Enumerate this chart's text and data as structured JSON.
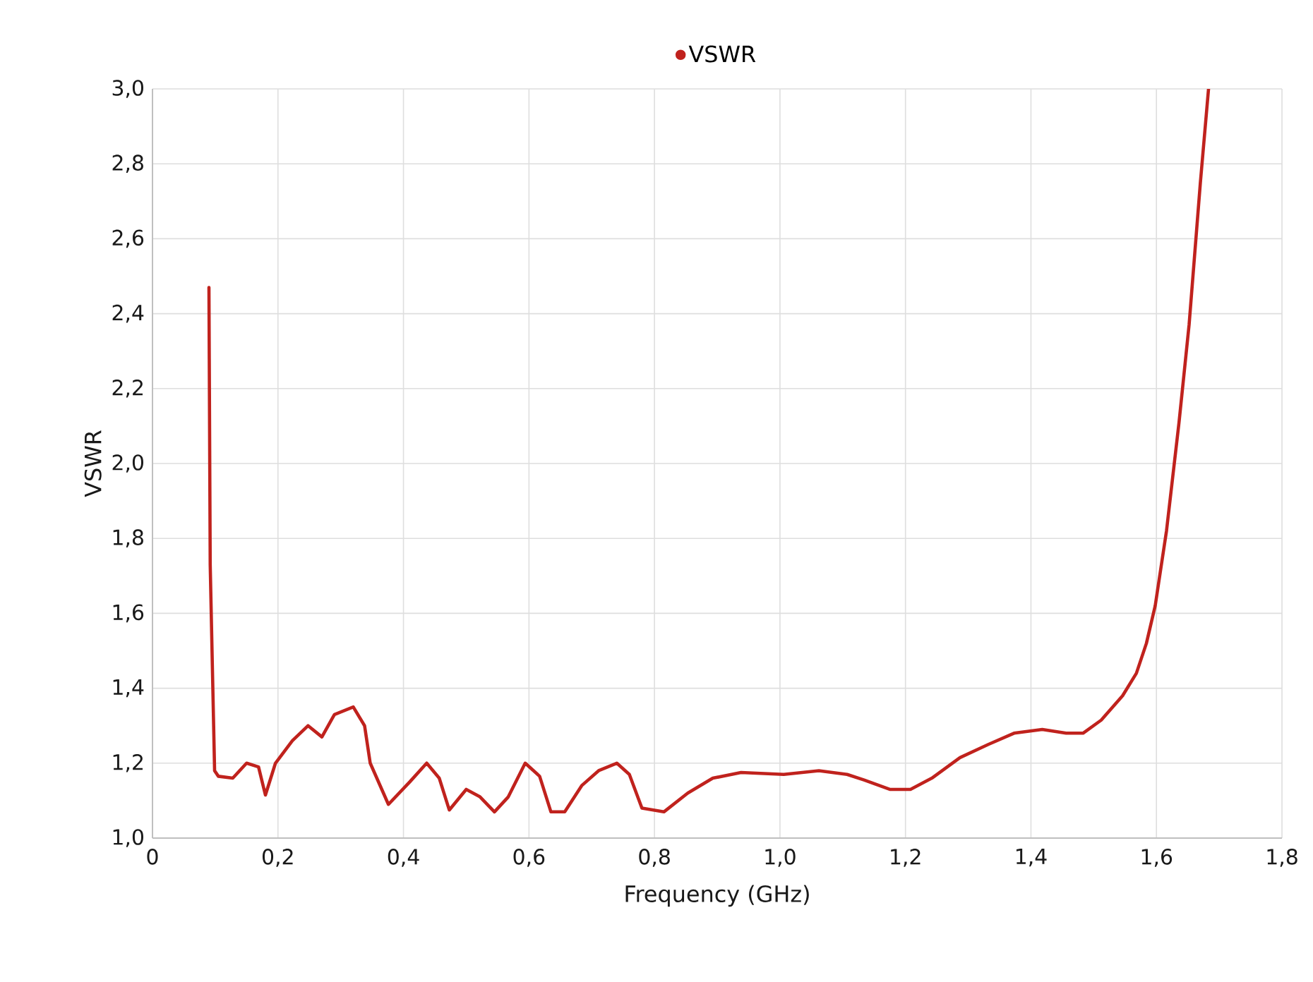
{
  "chart_data": {
    "type": "line",
    "xlabel": "Frequency (GHz)",
    "ylabel": "VSWR",
    "x": [
      0.09,
      0.092,
      0.099,
      0.105,
      0.128,
      0.15,
      0.169,
      0.18,
      0.196,
      0.223,
      0.248,
      0.27,
      0.29,
      0.32,
      0.338,
      0.347,
      0.376,
      0.41,
      0.437,
      0.457,
      0.473,
      0.5,
      0.522,
      0.545,
      0.567,
      0.594,
      0.617,
      0.635,
      0.657,
      0.684,
      0.711,
      0.74,
      0.76,
      0.78,
      0.815,
      0.853,
      0.893,
      0.938,
      1.006,
      1.062,
      1.107,
      1.134,
      1.175,
      1.208,
      1.242,
      1.287,
      1.332,
      1.373,
      1.418,
      1.456,
      1.483,
      1.512,
      1.546,
      1.568,
      1.584,
      1.598,
      1.616,
      1.636,
      1.652,
      1.67,
      1.683
    ],
    "series": [
      {
        "name": "VSWR",
        "color": "#c0221d",
        "values": [
          2.47,
          1.73,
          1.18,
          1.165,
          1.16,
          1.2,
          1.19,
          1.115,
          1.2,
          1.26,
          1.3,
          1.27,
          1.33,
          1.35,
          1.3,
          1.2,
          1.09,
          1.15,
          1.2,
          1.16,
          1.075,
          1.13,
          1.11,
          1.07,
          1.11,
          1.2,
          1.165,
          1.07,
          1.07,
          1.14,
          1.18,
          1.2,
          1.17,
          1.08,
          1.07,
          1.12,
          1.16,
          1.175,
          1.17,
          1.18,
          1.17,
          1.155,
          1.13,
          1.13,
          1.16,
          1.215,
          1.25,
          1.28,
          1.29,
          1.28,
          1.28,
          1.315,
          1.38,
          1.44,
          1.52,
          1.62,
          1.82,
          2.11,
          2.37,
          2.75,
          3.0
        ]
      }
    ],
    "xlim": [
      0,
      1.8
    ],
    "ylim": [
      1.0,
      3.0
    ],
    "xticks": [
      0,
      {
        "value": 0.2,
        "label": "0,2"
      },
      {
        "value": 0.4,
        "label": "0,4"
      },
      {
        "value": 0.6,
        "label": "0,6"
      },
      {
        "value": 0.8,
        "label": "0,8"
      },
      {
        "value": 1.0,
        "label": "1,0"
      },
      {
        "value": 1.2,
        "label": "1,2"
      },
      {
        "value": 1.4,
        "label": "1,4"
      },
      {
        "value": 1.6,
        "label": "1,6"
      },
      {
        "value": 1.8,
        "label": "1,8"
      }
    ],
    "yticks": [
      {
        "value": 1.0,
        "label": "1,0"
      },
      {
        "value": 1.2,
        "label": "1,2"
      },
      {
        "value": 1.4,
        "label": "1,4"
      },
      {
        "value": 1.6,
        "label": "1,6"
      },
      {
        "value": 1.8,
        "label": "1,8"
      },
      {
        "value": 2.0,
        "label": "2,0"
      },
      {
        "value": 2.2,
        "label": "2,2"
      },
      {
        "value": 2.4,
        "label": "2,4"
      },
      {
        "value": 2.6,
        "label": "2,6"
      },
      {
        "value": 2.8,
        "label": "2,8"
      },
      {
        "value": 3.0,
        "label": "3,0"
      }
    ],
    "grid": true,
    "legend": "top"
  }
}
